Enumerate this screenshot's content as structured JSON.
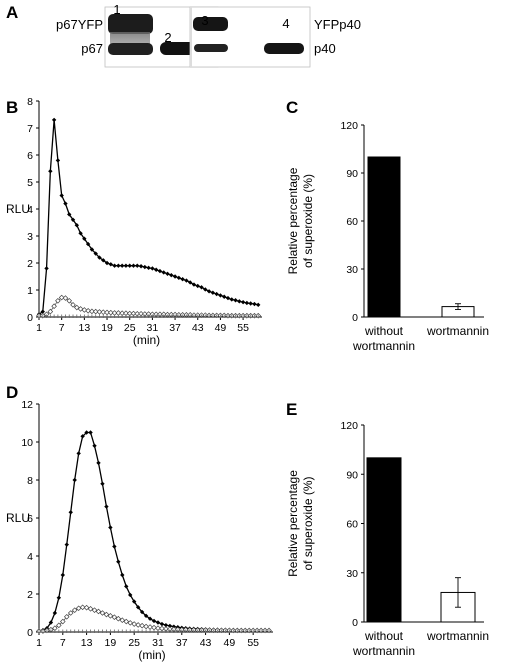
{
  "panels": {
    "A": "A",
    "B": "B",
    "C": "C",
    "D": "D",
    "E": "E"
  },
  "blot": {
    "lanes": [
      "1",
      "2",
      "3",
      "4"
    ],
    "left_labels": [
      "p67YFP",
      "p67"
    ],
    "right_labels": [
      "YFPp40",
      "p40"
    ]
  },
  "chart_data": [
    {
      "panel": "B",
      "type": "line",
      "ylabel": "RLU",
      "xlabel": "(min)",
      "ylim": [
        0,
        8
      ],
      "yticks": [
        0,
        1,
        2,
        3,
        4,
        5,
        6,
        7,
        8
      ],
      "xlim": [
        1,
        60
      ],
      "xticks": [
        1,
        7,
        13,
        19,
        25,
        31,
        37,
        43,
        49,
        55
      ],
      "series": [
        {
          "marker": "filled-diamond",
          "x": [
            1,
            2,
            3,
            4,
            5,
            6,
            7,
            8,
            9,
            10,
            11,
            12,
            13,
            14,
            15,
            16,
            17,
            18,
            19,
            20,
            21,
            22,
            23,
            24,
            25,
            26,
            27,
            28,
            29,
            30,
            31,
            32,
            33,
            34,
            35,
            36,
            37,
            38,
            39,
            40,
            41,
            42,
            43,
            44,
            45,
            46,
            47,
            48,
            49,
            50,
            51,
            52,
            53,
            54,
            55,
            56,
            57,
            58,
            59
          ],
          "y": [
            0.1,
            0.2,
            1.8,
            5.4,
            7.3,
            5.8,
            4.5,
            4.2,
            3.8,
            3.6,
            3.4,
            3.1,
            2.9,
            2.7,
            2.5,
            2.35,
            2.2,
            2.1,
            2.0,
            1.95,
            1.9,
            1.9,
            1.9,
            1.9,
            1.9,
            1.9,
            1.9,
            1.88,
            1.85,
            1.82,
            1.8,
            1.75,
            1.7,
            1.65,
            1.6,
            1.55,
            1.5,
            1.45,
            1.4,
            1.35,
            1.28,
            1.2,
            1.15,
            1.1,
            1.02,
            0.95,
            0.9,
            0.85,
            0.8,
            0.75,
            0.7,
            0.65,
            0.62,
            0.58,
            0.55,
            0.52,
            0.5,
            0.48,
            0.45
          ]
        },
        {
          "marker": "open-diamond",
          "x": [
            1,
            2,
            3,
            4,
            5,
            6,
            7,
            8,
            9,
            10,
            11,
            12,
            13,
            14,
            15,
            16,
            17,
            18,
            19,
            20,
            21,
            22,
            23,
            24,
            25,
            26,
            27,
            28,
            29,
            30,
            31,
            32,
            33,
            34,
            35,
            36,
            37,
            38,
            39,
            40,
            41,
            42,
            43,
            44,
            45,
            46,
            47,
            48,
            49,
            50,
            51,
            52,
            53,
            54,
            55,
            56,
            57,
            58,
            59
          ],
          "y": [
            0.05,
            0.05,
            0.1,
            0.2,
            0.4,
            0.6,
            0.72,
            0.7,
            0.6,
            0.45,
            0.35,
            0.3,
            0.26,
            0.23,
            0.21,
            0.2,
            0.19,
            0.18,
            0.17,
            0.16,
            0.15,
            0.15,
            0.14,
            0.14,
            0.13,
            0.13,
            0.12,
            0.12,
            0.11,
            0.11,
            0.1,
            0.1,
            0.1,
            0.1,
            0.09,
            0.09,
            0.09,
            0.08,
            0.08,
            0.08,
            0.08,
            0.07,
            0.07,
            0.07,
            0.07,
            0.06,
            0.06,
            0.06,
            0.06,
            0.06,
            0.05,
            0.05,
            0.05,
            0.05,
            0.05,
            0.05,
            0.05,
            0.05,
            0.05
          ]
        },
        {
          "marker": "tick",
          "x": [
            1,
            2,
            3,
            4,
            5,
            6,
            7,
            8,
            9,
            10,
            11,
            12,
            13,
            14,
            15,
            16,
            17,
            18,
            19,
            20,
            21,
            22,
            23,
            24,
            25,
            26,
            27,
            28,
            29,
            30,
            31,
            32,
            33,
            34,
            35,
            36,
            37,
            38,
            39,
            40,
            41,
            42,
            43,
            44,
            45,
            46,
            47,
            48,
            49,
            50,
            51,
            52,
            53,
            54,
            55,
            56,
            57,
            58,
            59
          ],
          "y": [
            0,
            0,
            0,
            0,
            0,
            0,
            0,
            0,
            0,
            0,
            0,
            0,
            0,
            0,
            0,
            0,
            0,
            0,
            0,
            0,
            0,
            0,
            0,
            0,
            0,
            0,
            0,
            0,
            0,
            0,
            0,
            0,
            0,
            0,
            0,
            0,
            0,
            0,
            0,
            0,
            0,
            0,
            0,
            0,
            0,
            0,
            0,
            0,
            0,
            0,
            0,
            0,
            0,
            0,
            0,
            0,
            0,
            0,
            0
          ]
        }
      ]
    },
    {
      "panel": "C",
      "type": "bar",
      "ylabel": "Relative percentage of superoxide (%)",
      "ylabel_lines": [
        "Relative percentage",
        "of superoxide (%)"
      ],
      "ylim": [
        0,
        120
      ],
      "yticks": [
        0,
        30,
        60,
        90,
        120
      ],
      "categories": [
        "without wortmannin",
        "wortmannin"
      ],
      "category_lines": [
        [
          "without",
          "wortmannin"
        ],
        [
          "wortmannin"
        ]
      ],
      "values": [
        100,
        6.5
      ],
      "errors": [
        0,
        1.8
      ],
      "fills": [
        "#000000",
        "#ffffff"
      ]
    },
    {
      "panel": "D",
      "type": "line",
      "ylabel": "RLU",
      "xlabel": "(min)",
      "ylim": [
        0,
        12
      ],
      "yticks": [
        0,
        2,
        4,
        6,
        8,
        10,
        12
      ],
      "xlim": [
        1,
        60
      ],
      "xticks": [
        1,
        7,
        13,
        19,
        25,
        31,
        37,
        43,
        49,
        55
      ],
      "series": [
        {
          "marker": "filled-diamond",
          "x": [
            1,
            2,
            3,
            4,
            5,
            6,
            7,
            8,
            9,
            10,
            11,
            12,
            13,
            14,
            15,
            16,
            17,
            18,
            19,
            20,
            21,
            22,
            23,
            24,
            25,
            26,
            27,
            28,
            29,
            30,
            31,
            32,
            33,
            34,
            35,
            36,
            37,
            38,
            39,
            40,
            41,
            42,
            43,
            44,
            45,
            46,
            47,
            48,
            49,
            50,
            51,
            52,
            53,
            54,
            55,
            56,
            57,
            58,
            59
          ],
          "y": [
            0.05,
            0.1,
            0.2,
            0.5,
            1.0,
            1.8,
            3.0,
            4.6,
            6.3,
            8.0,
            9.4,
            10.3,
            10.5,
            10.5,
            9.8,
            8.9,
            7.8,
            6.6,
            5.5,
            4.5,
            3.7,
            3.0,
            2.4,
            1.95,
            1.6,
            1.3,
            1.05,
            0.85,
            0.7,
            0.58,
            0.5,
            0.42,
            0.36,
            0.32,
            0.28,
            0.25,
            0.22,
            0.2,
            0.18,
            0.17,
            0.16,
            0.15,
            0.14,
            0.13,
            0.12,
            0.12,
            0.11,
            0.11,
            0.1,
            0.1,
            0.1,
            0.09,
            0.09,
            0.09,
            0.08,
            0.08,
            0.08,
            0.08,
            0.08
          ]
        },
        {
          "marker": "open-diamond",
          "x": [
            1,
            2,
            3,
            4,
            5,
            6,
            7,
            8,
            9,
            10,
            11,
            12,
            13,
            14,
            15,
            16,
            17,
            18,
            19,
            20,
            21,
            22,
            23,
            24,
            25,
            26,
            27,
            28,
            29,
            30,
            31,
            32,
            33,
            34,
            35,
            36,
            37,
            38,
            39,
            40,
            41,
            42,
            43,
            44,
            45,
            46,
            47,
            48,
            49,
            50,
            51,
            52,
            53,
            54,
            55,
            56,
            57,
            58,
            59
          ],
          "y": [
            0.05,
            0.05,
            0.08,
            0.12,
            0.2,
            0.35,
            0.55,
            0.8,
            1.0,
            1.15,
            1.25,
            1.3,
            1.28,
            1.22,
            1.15,
            1.08,
            1.0,
            0.92,
            0.85,
            0.78,
            0.7,
            0.62,
            0.55,
            0.48,
            0.42,
            0.37,
            0.33,
            0.29,
            0.26,
            0.23,
            0.2,
            0.18,
            0.16,
            0.15,
            0.14,
            0.13,
            0.12,
            0.12,
            0.11,
            0.11,
            0.1,
            0.1,
            0.1,
            0.1,
            0.09,
            0.09,
            0.09,
            0.09,
            0.09,
            0.08,
            0.08,
            0.08,
            0.08,
            0.08,
            0.08,
            0.08,
            0.08,
            0.08,
            0.08
          ]
        },
        {
          "marker": "tick",
          "x": [
            1,
            2,
            3,
            4,
            5,
            6,
            7,
            8,
            9,
            10,
            11,
            12,
            13,
            14,
            15,
            16,
            17,
            18,
            19,
            20,
            21,
            22,
            23,
            24,
            25,
            26,
            27,
            28,
            29,
            30,
            31,
            32,
            33,
            34,
            35,
            36,
            37,
            38,
            39,
            40,
            41,
            42,
            43,
            44,
            45,
            46,
            47,
            48,
            49,
            50,
            51,
            52,
            53,
            54,
            55,
            56,
            57,
            58,
            59
          ],
          "y": [
            0,
            0,
            0,
            0,
            0,
            0,
            0,
            0,
            0,
            0,
            0,
            0,
            0,
            0,
            0,
            0,
            0,
            0,
            0,
            0,
            0,
            0,
            0,
            0,
            0,
            0,
            0,
            0,
            0,
            0,
            0,
            0,
            0,
            0,
            0,
            0,
            0,
            0,
            0,
            0,
            0,
            0,
            0,
            0,
            0,
            0,
            0,
            0,
            0,
            0,
            0,
            0,
            0,
            0,
            0,
            0,
            0,
            0,
            0
          ]
        }
      ]
    },
    {
      "panel": "E",
      "type": "bar",
      "ylabel": "Relative percentage of superoxide (%)",
      "ylabel_lines": [
        "Relative percentage",
        "of superoxide (%)"
      ],
      "ylim": [
        0,
        120
      ],
      "yticks": [
        0,
        30,
        60,
        90,
        120
      ],
      "categories": [
        "without wortmannin",
        "wortmannin"
      ],
      "category_lines": [
        [
          "without",
          "wortmannin"
        ],
        [
          "wortmannin"
        ]
      ],
      "values": [
        100,
        18
      ],
      "errors": [
        0,
        9
      ],
      "fills": [
        "#000000",
        "#ffffff"
      ]
    }
  ]
}
